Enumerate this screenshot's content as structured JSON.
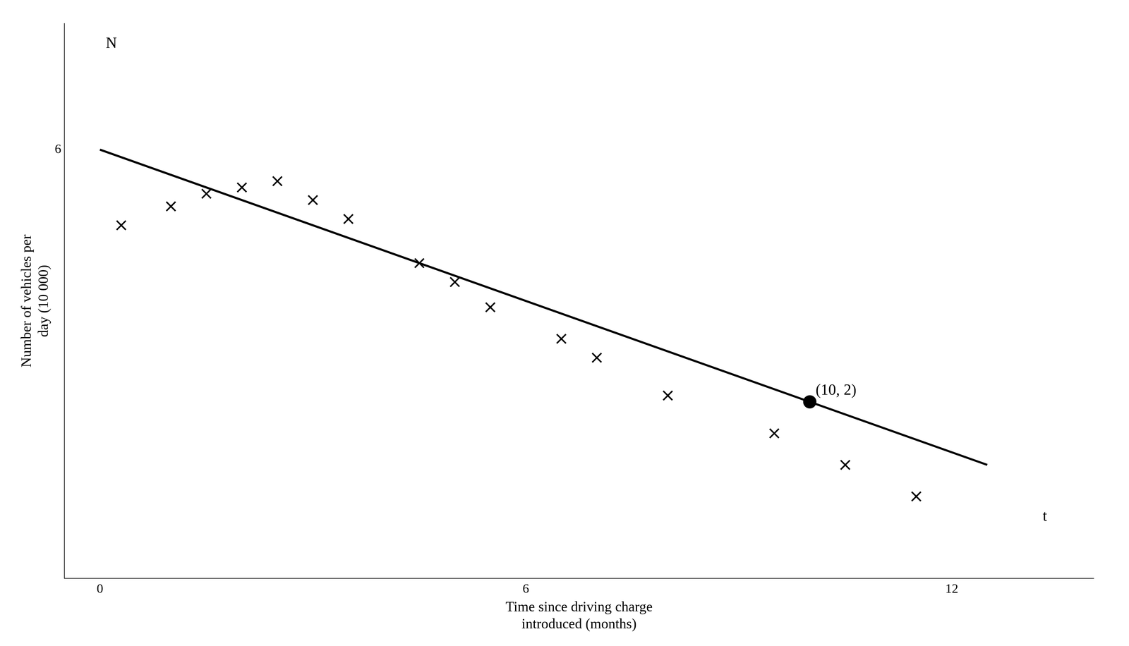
{
  "chart_data": {
    "type": "scatter",
    "xlabel": [
      "Time since driving charge",
      "introduced (months)"
    ],
    "ylabel": [
      "Number of vehicles per",
      "day (10 000)"
    ],
    "xlim": [
      -0.5,
      14.0
    ],
    "ylim": [
      -0.8,
      8.0
    ],
    "xticks": [
      0,
      6,
      12
    ],
    "yticks": [
      6
    ],
    "grid": false,
    "series": [
      {
        "type": "scatter",
        "marker": "x",
        "color": "#000000",
        "x": [
          0.3,
          1.0,
          1.5,
          2.0,
          2.5,
          3.0,
          3.5,
          4.5,
          5.0,
          5.5,
          6.5,
          7.0,
          8.0,
          9.5,
          10.5,
          11.5
        ],
        "values": [
          4.8,
          5.1,
          5.3,
          5.4,
          5.5,
          5.2,
          4.9,
          4.2,
          3.9,
          3.5,
          3.0,
          2.7,
          2.1,
          1.5,
          1.0,
          0.5
        ]
      },
      {
        "type": "line",
        "color": "#000000",
        "x": [
          0,
          12.5
        ],
        "values": [
          6,
          1
        ]
      },
      {
        "type": "scatter",
        "marker": "o",
        "color": "#000000",
        "x": [
          10
        ],
        "values": [
          2
        ]
      }
    ],
    "annotations": [
      {
        "text": "(10, 2)",
        "x": 10,
        "y": 2
      },
      {
        "text": "N",
        "x": 0,
        "y": 7.5
      },
      {
        "text": "t",
        "x": 13.2,
        "y": 0
      }
    ]
  }
}
